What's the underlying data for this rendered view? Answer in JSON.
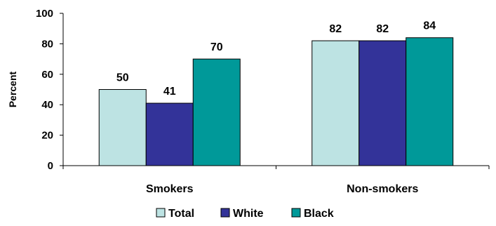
{
  "chart_data": {
    "type": "bar",
    "title": "",
    "xlabel": "",
    "ylabel": "Percent",
    "ylim": [
      0,
      100
    ],
    "yticks": [
      0,
      20,
      40,
      60,
      80,
      100
    ],
    "grid": false,
    "legend_position": "bottom",
    "categories": [
      "Smokers",
      "Non-smokers"
    ],
    "series": [
      {
        "name": "Total",
        "color": "#bde3e3",
        "values": [
          50,
          82
        ]
      },
      {
        "name": "White",
        "color": "#333399",
        "values": [
          41,
          82
        ]
      },
      {
        "name": "Black",
        "color": "#009999",
        "values": [
          70,
          84
        ]
      }
    ]
  }
}
